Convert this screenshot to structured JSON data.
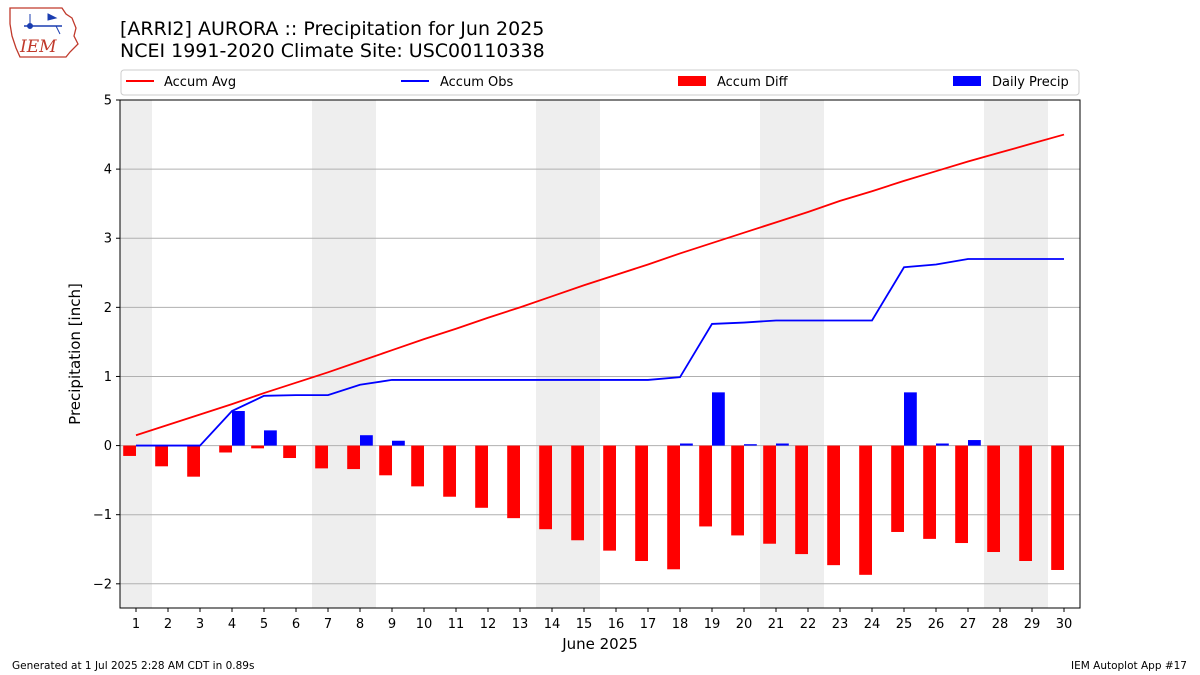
{
  "header": {
    "title_line1": "[ARRI2] AURORA :: Precipitation for Jun 2025",
    "title_line2": "NCEI 1991-2020 Climate Site: USC00110338"
  },
  "logo": {
    "text": "IEM"
  },
  "footer": {
    "left": "Generated at 1 Jul 2025 2:28 AM CDT in 0.89s",
    "right": "IEM Autoplot App #17"
  },
  "colors": {
    "accum_avg": "#ff0000",
    "accum_obs": "#0000ff",
    "accum_diff": "#ff0000",
    "daily_precip": "#0000ff",
    "weekend_band": "#eeeeee",
    "grid": "#b0b0b0"
  },
  "chart_data": {
    "type": "bar",
    "xlabel": "June 2025",
    "ylabel": "Precipitation [inch]",
    "ylim": [
      -2.35,
      5
    ],
    "xlim": [
      0.5,
      30.5
    ],
    "grid": "y",
    "legend": "top",
    "x": [
      1,
      2,
      3,
      4,
      5,
      6,
      7,
      8,
      9,
      10,
      11,
      12,
      13,
      14,
      15,
      16,
      17,
      18,
      19,
      20,
      21,
      22,
      23,
      24,
      25,
      26,
      27,
      28,
      29,
      30
    ],
    "x_tick_labels": [
      "1",
      "2",
      "3",
      "4",
      "5",
      "6",
      "7",
      "8",
      "9",
      "10",
      "11",
      "12",
      "13",
      "14",
      "15",
      "16",
      "17",
      "18",
      "19",
      "20",
      "21",
      "22",
      "23",
      "24",
      "25",
      "26",
      "27",
      "28",
      "29",
      "30"
    ],
    "y_ticks": [
      -2,
      -1,
      0,
      1,
      2,
      3,
      4,
      5
    ],
    "y_tick_labels": [
      "−2",
      "−1",
      "0",
      "1",
      "2",
      "3",
      "4",
      "5"
    ],
    "weekend_bands": [
      [
        0.5,
        1.5
      ],
      [
        6.5,
        8.5
      ],
      [
        13.5,
        15.5
      ],
      [
        20.5,
        22.5
      ],
      [
        27.5,
        29.5
      ]
    ],
    "series": [
      {
        "name": "Accum Avg",
        "type": "line",
        "values": [
          0.15,
          0.3,
          0.45,
          0.6,
          0.76,
          0.91,
          1.06,
          1.22,
          1.38,
          1.54,
          1.69,
          1.85,
          2.0,
          2.16,
          2.32,
          2.47,
          2.62,
          2.78,
          2.93,
          3.08,
          3.23,
          3.38,
          3.54,
          3.68,
          3.83,
          3.97,
          4.11,
          4.24,
          4.37,
          4.5
        ]
      },
      {
        "name": "Accum Obs",
        "type": "line",
        "values": [
          0.0,
          0.0,
          0.0,
          0.5,
          0.72,
          0.73,
          0.73,
          0.88,
          0.95,
          0.95,
          0.95,
          0.95,
          0.95,
          0.95,
          0.95,
          0.95,
          0.95,
          0.99,
          1.76,
          1.78,
          1.81,
          1.81,
          1.81,
          1.81,
          2.58,
          2.62,
          2.7,
          2.7,
          2.7,
          2.7
        ]
      },
      {
        "name": "Accum Diff",
        "type": "bar",
        "values": [
          -0.15,
          -0.3,
          -0.45,
          -0.1,
          -0.04,
          -0.18,
          -0.33,
          -0.34,
          -0.43,
          -0.59,
          -0.74,
          -0.9,
          -1.05,
          -1.21,
          -1.37,
          -1.52,
          -1.67,
          -1.79,
          -1.17,
          -1.3,
          -1.42,
          -1.57,
          -1.73,
          -1.87,
          -1.25,
          -1.35,
          -1.41,
          -1.54,
          -1.67,
          -1.8
        ]
      },
      {
        "name": "Daily Precip",
        "type": "bar",
        "values": [
          0,
          0,
          0,
          0.5,
          0.22,
          0,
          0,
          0.15,
          0.07,
          0,
          0,
          0,
          0,
          0,
          0,
          0,
          0,
          0.03,
          0.77,
          0.02,
          0.03,
          0,
          0,
          0,
          0.77,
          0.03,
          0.08,
          0,
          0,
          0
        ]
      }
    ]
  }
}
